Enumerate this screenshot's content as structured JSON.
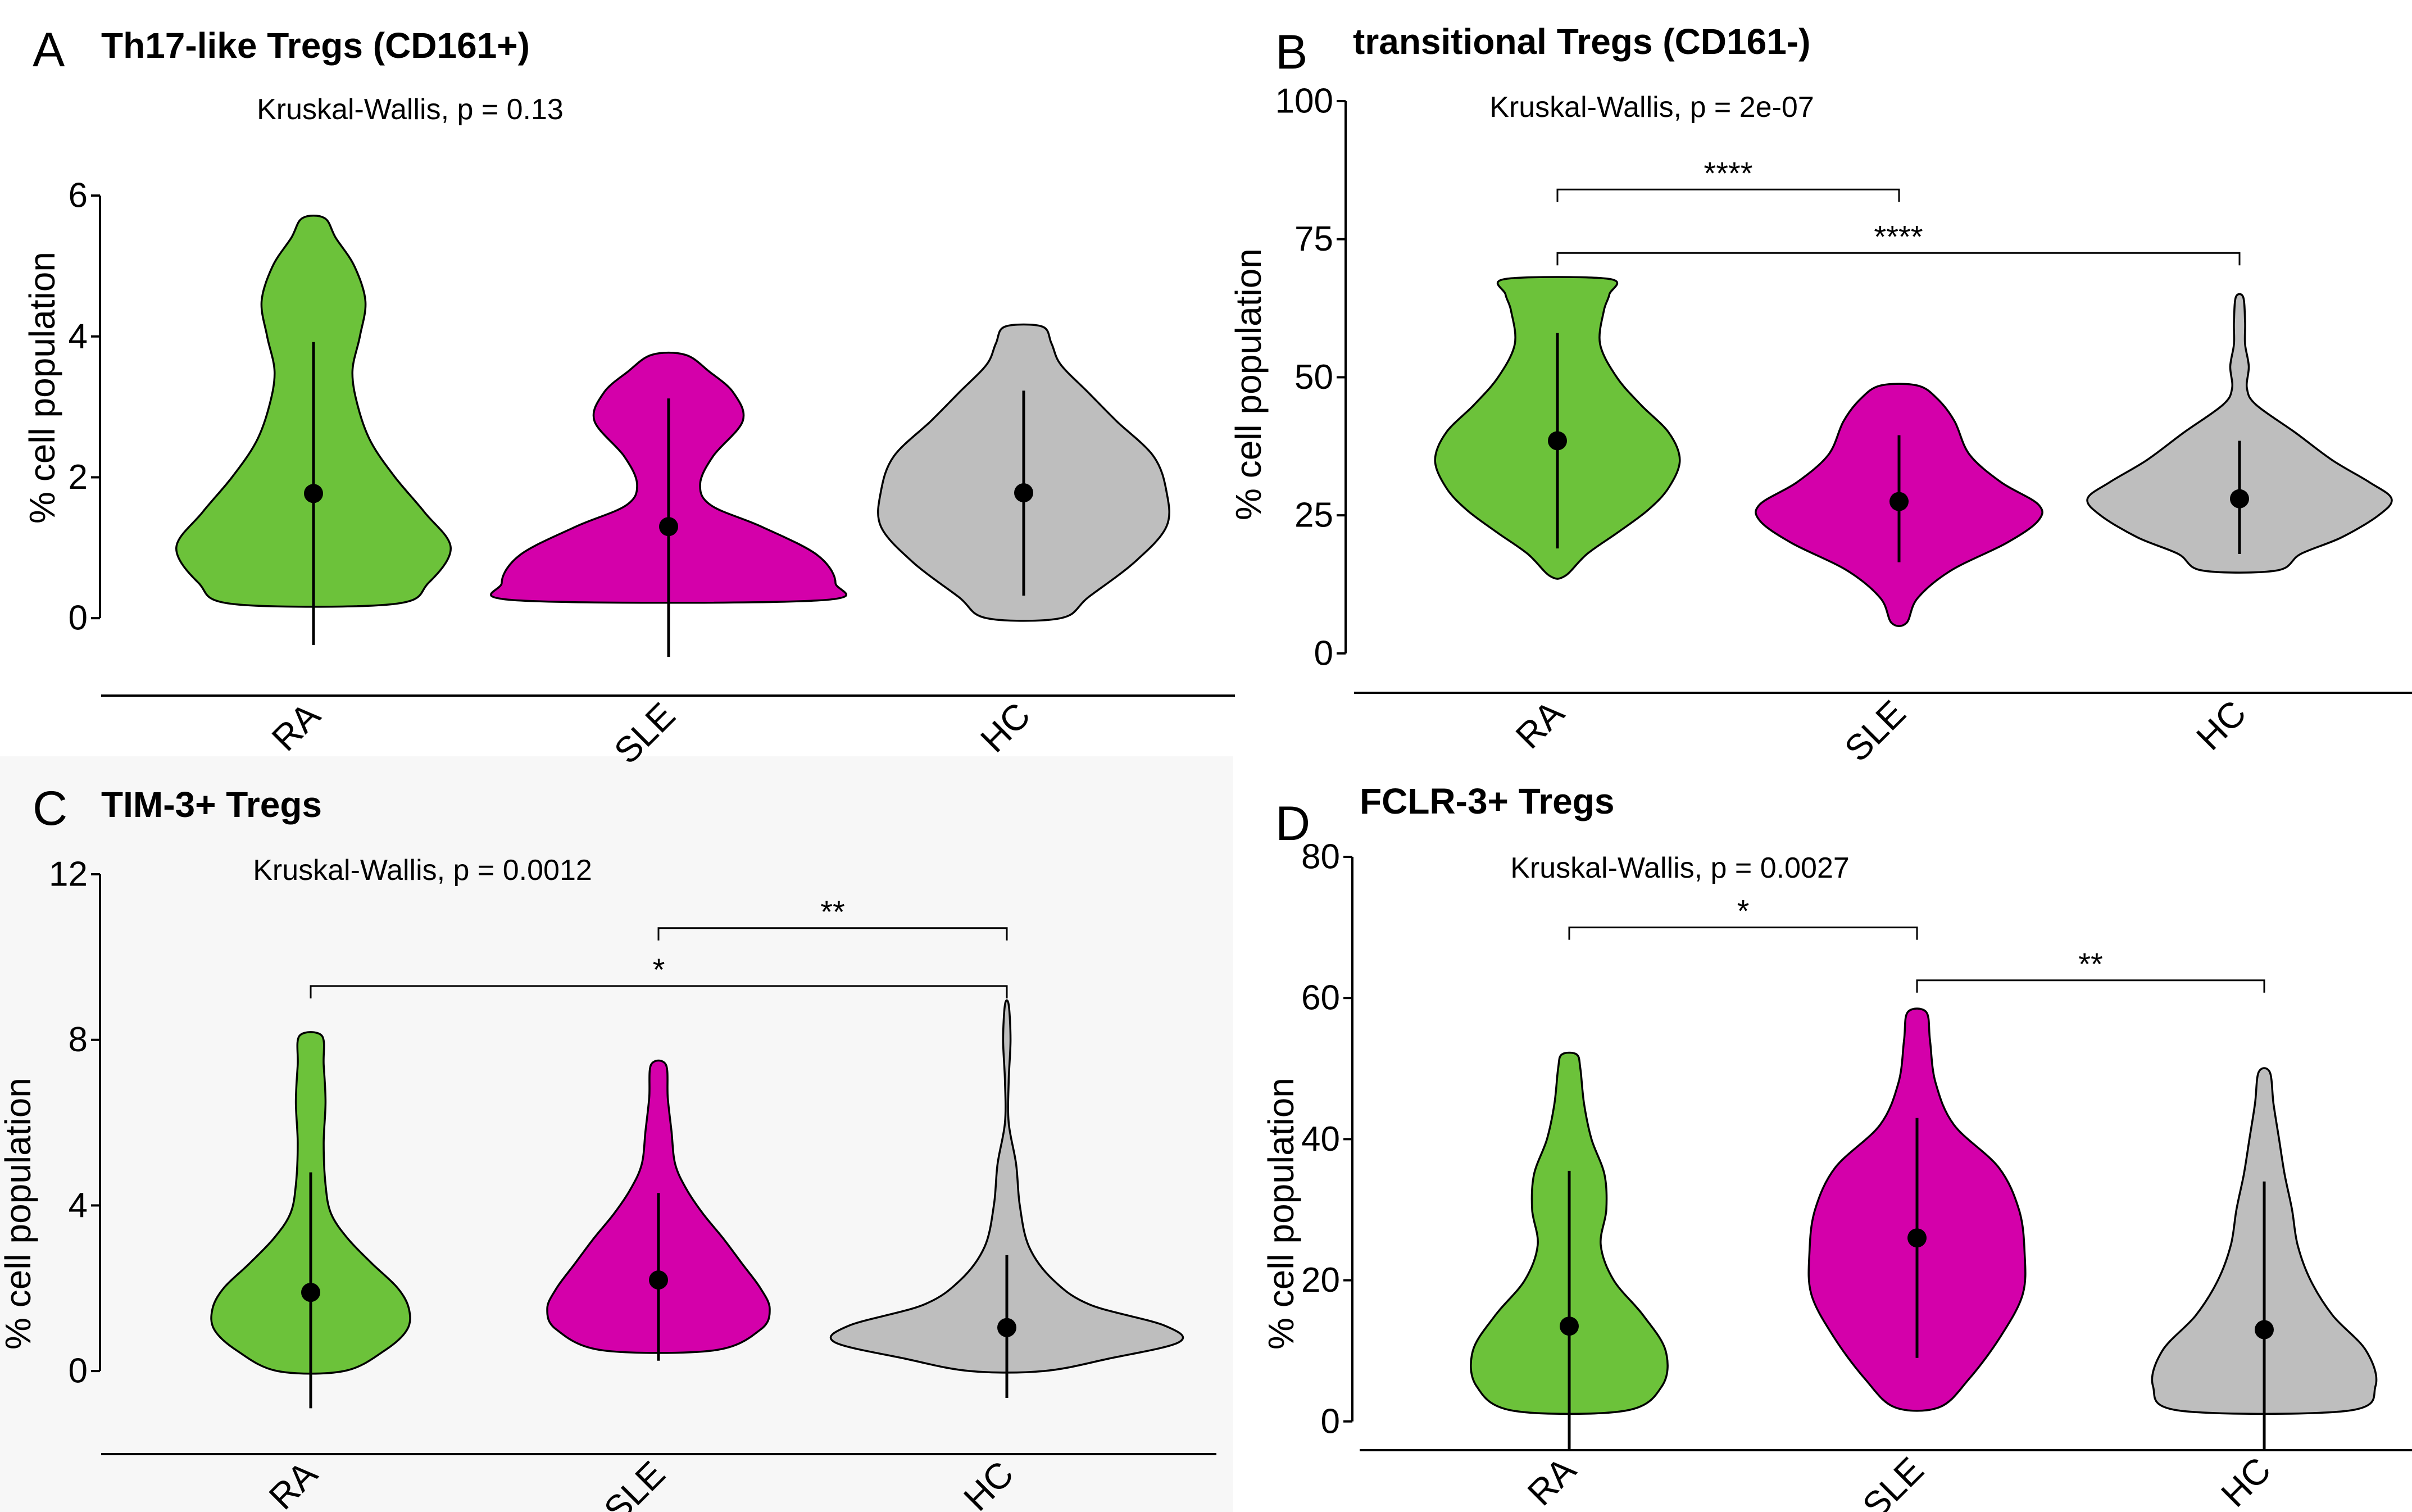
{
  "colors": {
    "RA": "#6cc23a",
    "SLE": "#d400aa",
    "HC": "#bebebe"
  },
  "chart_data": [
    {
      "type": "violin",
      "panel": "A",
      "title": "Th17-like Tregs (CD161+)",
      "subtitle": "Kruskal-Wallis, p = 0.13",
      "ylabel": "% cell population",
      "categories": [
        "RA",
        "SLE",
        "HC"
      ],
      "ylim": [
        -0.9,
        6.2
      ],
      "yticks": [
        0,
        2,
        4,
        6
      ],
      "groups": [
        {
          "name": "RA",
          "color": "#6cc23a",
          "mean": 1.77,
          "low": -0.38,
          "high": 3.92,
          "violin": [
            [
              0.2,
              0.43
            ],
            [
              0.5,
              0.62
            ],
            [
              1.0,
              0.74
            ],
            [
              1.5,
              0.6
            ],
            [
              2.0,
              0.44
            ],
            [
              2.5,
              0.31
            ],
            [
              3.0,
              0.24
            ],
            [
              3.5,
              0.21
            ],
            [
              4.0,
              0.25
            ],
            [
              4.5,
              0.28
            ],
            [
              5.0,
              0.22
            ],
            [
              5.4,
              0.12
            ],
            [
              5.68,
              0.06
            ]
          ]
        },
        {
          "name": "SLE",
          "color": "#d400aa",
          "mean": 1.3,
          "low": -0.55,
          "high": 3.12,
          "violin": [
            [
              0.25,
              0.8
            ],
            [
              0.5,
              0.9
            ],
            [
              0.9,
              0.8
            ],
            [
              1.3,
              0.5
            ],
            [
              1.6,
              0.23
            ],
            [
              1.9,
              0.17
            ],
            [
              2.3,
              0.24
            ],
            [
              2.8,
              0.4
            ],
            [
              3.2,
              0.35
            ],
            [
              3.5,
              0.22
            ],
            [
              3.74,
              0.09
            ]
          ]
        },
        {
          "name": "HC",
          "color": "#bebebe",
          "mean": 1.78,
          "low": 0.32,
          "high": 3.23,
          "violin": [
            [
              0.0,
              0.2
            ],
            [
              0.3,
              0.35
            ],
            [
              0.8,
              0.6
            ],
            [
              1.3,
              0.77
            ],
            [
              1.8,
              0.77
            ],
            [
              2.3,
              0.7
            ],
            [
              2.8,
              0.5
            ],
            [
              3.2,
              0.35
            ],
            [
              3.6,
              0.2
            ],
            [
              3.9,
              0.15
            ],
            [
              4.14,
              0.1
            ]
          ]
        }
      ],
      "comparisons": []
    },
    {
      "type": "violin",
      "panel": "B",
      "title": "transitional Tregs (CD161-)",
      "subtitle": "Kruskal-Wallis, p = 2e-07",
      "ylabel": "% cell population",
      "categories": [
        "RA",
        "SLE",
        "HC"
      ],
      "ylim": [
        -5,
        100
      ],
      "yticks": [
        0,
        25,
        50,
        75,
        100
      ],
      "groups": [
        {
          "name": "RA",
          "color": "#6cc23a",
          "mean": 38.5,
          "low": 19,
          "high": 58,
          "violin": [
            [
              14,
              0.04
            ],
            [
              18,
              0.16
            ],
            [
              22,
              0.33
            ],
            [
              26,
              0.49
            ],
            [
              30,
              0.6
            ],
            [
              35,
              0.66
            ],
            [
              40,
              0.6
            ],
            [
              45,
              0.45
            ],
            [
              50,
              0.32
            ],
            [
              56,
              0.23
            ],
            [
              62,
              0.25
            ],
            [
              65,
              0.28
            ],
            [
              67.8,
              0.28
            ]
          ]
        },
        {
          "name": "SLE",
          "color": "#d400aa",
          "mean": 27.5,
          "low": 16.5,
          "high": 39.5,
          "violin": [
            [
              5.5,
              0.04
            ],
            [
              10,
              0.1
            ],
            [
              15,
              0.28
            ],
            [
              20,
              0.58
            ],
            [
              24,
              0.75
            ],
            [
              27,
              0.75
            ],
            [
              31,
              0.55
            ],
            [
              36,
              0.38
            ],
            [
              42,
              0.3
            ],
            [
              46,
              0.21
            ],
            [
              48.5,
              0.1
            ]
          ]
        },
        {
          "name": "HC",
          "color": "#bebebe",
          "mean": 28,
          "low": 18,
          "high": 38.5,
          "violin": [
            [
              15,
              0.2
            ],
            [
              18,
              0.33
            ],
            [
              21,
              0.55
            ],
            [
              25,
              0.75
            ],
            [
              28,
              0.82
            ],
            [
              31,
              0.7
            ],
            [
              35,
              0.5
            ],
            [
              40,
              0.3
            ],
            [
              45,
              0.09
            ],
            [
              48,
              0.04
            ],
            [
              52,
              0.05
            ],
            [
              56,
              0.03
            ],
            [
              60,
              0.03
            ],
            [
              64.5,
              0.02
            ]
          ]
        }
      ],
      "comparisons": [
        {
          "from": "RA",
          "to": "SLE",
          "label": "****",
          "y": 84
        },
        {
          "from": "RA",
          "to": "HC",
          "label": "****",
          "y": 72.5
        }
      ]
    },
    {
      "type": "violin",
      "panel": "C",
      "title": "TIM-3+ Tregs",
      "subtitle": "Kruskal-Wallis, p = 0.0012",
      "ylabel": "% cell population",
      "categories": [
        "RA",
        "SLE",
        "HC"
      ],
      "ylim": [
        -1.6,
        12
      ],
      "yticks": [
        0,
        4,
        8,
        12
      ],
      "groups": [
        {
          "name": "RA",
          "color": "#6cc23a",
          "mean": 1.9,
          "low": -0.9,
          "high": 4.8,
          "violin": [
            [
              0.0,
              0.18
            ],
            [
              0.5,
              0.4
            ],
            [
              1.0,
              0.52
            ],
            [
              1.5,
              0.53
            ],
            [
              2.0,
              0.47
            ],
            [
              2.6,
              0.33
            ],
            [
              3.2,
              0.2
            ],
            [
              3.8,
              0.11
            ],
            [
              4.5,
              0.08
            ],
            [
              5.5,
              0.07
            ],
            [
              6.5,
              0.08
            ],
            [
              7.4,
              0.07
            ],
            [
              8.1,
              0.06
            ]
          ]
        },
        {
          "name": "SLE",
          "color": "#d400aa",
          "mean": 2.2,
          "low": 0.25,
          "high": 4.3,
          "violin": [
            [
              0.5,
              0.3
            ],
            [
              1.0,
              0.55
            ],
            [
              1.5,
              0.6
            ],
            [
              2.0,
              0.55
            ],
            [
              2.6,
              0.45
            ],
            [
              3.2,
              0.35
            ],
            [
              3.8,
              0.24
            ],
            [
              4.4,
              0.15
            ],
            [
              5.0,
              0.09
            ],
            [
              5.8,
              0.07
            ],
            [
              6.6,
              0.05
            ],
            [
              7.4,
              0.04
            ]
          ]
        },
        {
          "name": "HC",
          "color": "#bebebe",
          "mean": 1.05,
          "low": -0.65,
          "high": 2.8,
          "violin": [
            [
              0.0,
              0.2
            ],
            [
              0.3,
              0.55
            ],
            [
              0.7,
              0.93
            ],
            [
              1.1,
              0.85
            ],
            [
              1.6,
              0.45
            ],
            [
              2.2,
              0.25
            ],
            [
              3.0,
              0.12
            ],
            [
              4.0,
              0.07
            ],
            [
              5.0,
              0.05
            ],
            [
              6.0,
              0.01
            ],
            [
              7.0,
              0.01
            ],
            [
              8.0,
              0.02
            ],
            [
              8.85,
              0.01
            ]
          ]
        }
      ],
      "comparisons": [
        {
          "from": "SLE",
          "to": "HC",
          "label": "**",
          "y": 10.7
        },
        {
          "from": "RA",
          "to": "HC",
          "label": "*",
          "y": 9.3
        }
      ]
    },
    {
      "type": "violin",
      "panel": "D",
      "title": "FCLR-3+ Tregs",
      "subtitle": "Kruskal-Wallis, p = 0.0027",
      "ylabel": "% cell population",
      "categories": [
        "RA",
        "SLE",
        "HC"
      ],
      "ylim": [
        -4,
        80
      ],
      "yticks": [
        0,
        20,
        40,
        60,
        80
      ],
      "groups": [
        {
          "name": "RA",
          "color": "#6cc23a",
          "mean": 13.5,
          "low": -4,
          "high": 35.5,
          "violin": [
            [
              1.5,
              0.3
            ],
            [
              5,
              0.5
            ],
            [
              10,
              0.52
            ],
            [
              15,
              0.4
            ],
            [
              20,
              0.24
            ],
            [
              25,
              0.17
            ],
            [
              30,
              0.2
            ],
            [
              35,
              0.19
            ],
            [
              40,
              0.12
            ],
            [
              45,
              0.08
            ],
            [
              50,
              0.06
            ],
            [
              52,
              0.04
            ]
          ]
        },
        {
          "name": "SLE",
          "color": "#d400aa",
          "mean": 26,
          "low": 9,
          "high": 43,
          "violin": [
            [
              2,
              0.12
            ],
            [
              6,
              0.28
            ],
            [
              12,
              0.45
            ],
            [
              18,
              0.57
            ],
            [
              24,
              0.58
            ],
            [
              30,
              0.55
            ],
            [
              36,
              0.44
            ],
            [
              42,
              0.2
            ],
            [
              48,
              0.1
            ],
            [
              54,
              0.07
            ],
            [
              58,
              0.05
            ]
          ]
        },
        {
          "name": "HC",
          "color": "#bebebe",
          "mean": 13,
          "low": -4,
          "high": 34,
          "violin": [
            [
              1.5,
              0.45
            ],
            [
              5,
              0.6
            ],
            [
              10,
              0.55
            ],
            [
              15,
              0.37
            ],
            [
              20,
              0.25
            ],
            [
              25,
              0.18
            ],
            [
              30,
              0.15
            ],
            [
              35,
              0.11
            ],
            [
              40,
              0.08
            ],
            [
              45,
              0.05
            ],
            [
              49.5,
              0.03
            ]
          ]
        }
      ],
      "comparisons": [
        {
          "from": "RA",
          "to": "SLE",
          "label": "*",
          "y": 70
        },
        {
          "from": "SLE",
          "to": "HC",
          "label": "**",
          "y": 62.5
        }
      ]
    }
  ]
}
